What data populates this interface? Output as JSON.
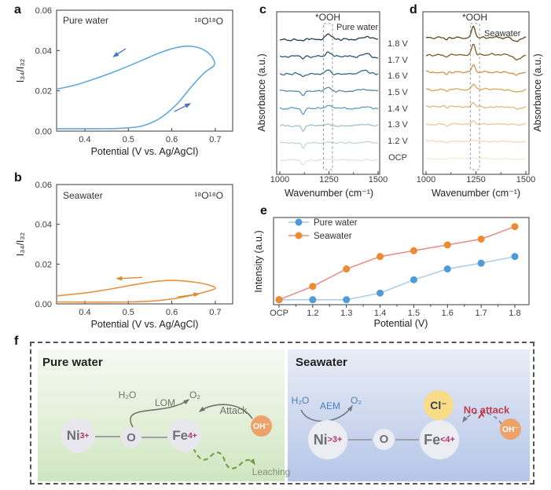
{
  "figure": {
    "panel_labels": {
      "a": "a",
      "b": "b",
      "c": "c",
      "d": "d",
      "e": "e",
      "f": "f"
    },
    "background": "#ffffff"
  },
  "voltage_labels": [
    "1.8 V",
    "1.7 V",
    "1.6 V",
    "1.5 V",
    "1.4 V",
    "1.3 V",
    "1.2 V",
    "OCP"
  ],
  "chart_data": [
    {
      "id": "a",
      "type": "line",
      "sample": "Pure water",
      "isotope": "¹⁸O¹⁸O",
      "xlabel": "Potential (V vs. Ag/AgCl)",
      "ylabel": "I₃₄/I₃₂",
      "xlim": [
        0.335,
        0.74
      ],
      "ylim": [
        0,
        0.06
      ],
      "xticks": [
        "0.4",
        "0.5",
        "0.6",
        "0.7"
      ],
      "yticks": [
        "0.00",
        "0.02",
        "0.04",
        "0.06"
      ],
      "color": "#63a8d8",
      "arrow_color": "#4575c4",
      "loop": [
        [
          0.335,
          0.0012
        ],
        [
          0.42,
          0.0012
        ],
        [
          0.48,
          0.0014
        ],
        [
          0.53,
          0.0025
        ],
        [
          0.57,
          0.006
        ],
        [
          0.61,
          0.013
        ],
        [
          0.645,
          0.022
        ],
        [
          0.675,
          0.029
        ],
        [
          0.698,
          0.033
        ],
        [
          0.688,
          0.038
        ],
        [
          0.66,
          0.0415
        ],
        [
          0.625,
          0.042
        ],
        [
          0.58,
          0.0395
        ],
        [
          0.53,
          0.035
        ],
        [
          0.48,
          0.0305
        ],
        [
          0.43,
          0.0265
        ],
        [
          0.38,
          0.023
        ],
        [
          0.335,
          0.0208
        ]
      ],
      "arrows": [
        {
          "from": [
            0.494,
            0.0409
          ],
          "to": [
            0.466,
            0.037
          ]
        },
        {
          "from": [
            0.606,
            0.0097
          ],
          "to": [
            0.642,
            0.0136
          ]
        }
      ]
    },
    {
      "id": "b",
      "type": "line",
      "sample": "Seawater",
      "isotope": "¹⁸O¹⁸O",
      "xlabel": "Potential (V vs. Ag/AgCl)",
      "ylabel": "I₃₄/I₃₂",
      "xlim": [
        0.335,
        0.74
      ],
      "ylim": [
        0,
        0.06
      ],
      "xticks": [
        "0.4",
        "0.5",
        "0.6",
        "0.7"
      ],
      "yticks": [
        "0.00",
        "0.02",
        "0.04",
        "0.06"
      ],
      "color": "#e59141",
      "arrow_color": "#de8a35",
      "loop": [
        [
          0.335,
          0.001
        ],
        [
          0.42,
          0.0009
        ],
        [
          0.5,
          0.001
        ],
        [
          0.56,
          0.0015
        ],
        [
          0.61,
          0.0028
        ],
        [
          0.655,
          0.0048
        ],
        [
          0.685,
          0.0065
        ],
        [
          0.7,
          0.0078
        ],
        [
          0.69,
          0.0092
        ],
        [
          0.665,
          0.0105
        ],
        [
          0.63,
          0.0115
        ],
        [
          0.6,
          0.0118
        ],
        [
          0.56,
          0.0112
        ],
        [
          0.51,
          0.0095
        ],
        [
          0.46,
          0.0075
        ],
        [
          0.4,
          0.0055
        ],
        [
          0.335,
          0.004
        ]
      ],
      "arrows": [
        {
          "from": [
            0.532,
            0.0133
          ],
          "to": [
            0.474,
            0.0127
          ]
        },
        {
          "from": [
            0.613,
            0.0035
          ],
          "to": [
            0.662,
            0.005
          ]
        }
      ]
    },
    {
      "id": "c",
      "type": "spectra",
      "sample": "Pure water",
      "annotation": "*OOH",
      "xlabel": "Wavenumber (cm⁻¹)",
      "ylabel": "Absorbance (a.u.)",
      "xlim": [
        1000,
        1500
      ],
      "xticks": [
        "1000",
        "1250",
        "1500"
      ],
      "highlight_band": [
        1222,
        1268
      ],
      "peak_center": 1247,
      "curves": [
        {
          "label": "1.8 V",
          "color": "#223c4d",
          "peak": 6.5,
          "dip": 3,
          "bump": 4,
          "noise": 2.6
        },
        {
          "label": "1.7 V",
          "color": "#2a5572",
          "peak": 6.0,
          "dip": 3,
          "bump": 4,
          "noise": 2.6
        },
        {
          "label": "1.6 V",
          "color": "#336a8c",
          "peak": 5.5,
          "dip": 4,
          "bump": 3.5,
          "noise": 2.4
        },
        {
          "label": "1.5 V",
          "color": "#5588ab",
          "peak": 4.5,
          "dip": 6,
          "bump": 3,
          "noise": 2.2
        },
        {
          "label": "1.4 V",
          "color": "#5f9dc4",
          "peak": 3.5,
          "dip": 8,
          "bump": 2,
          "noise": 2.2
        },
        {
          "label": "1.3 V",
          "color": "#a2bfce",
          "peak": 2.5,
          "dip": 7,
          "bump": 1.5,
          "noise": 1.8
        },
        {
          "label": "1.2 V",
          "color": "#c4d4de",
          "peak": 2.0,
          "dip": 6,
          "bump": 1,
          "noise": 1.6
        },
        {
          "label": "OCP",
          "color": "#dae4ea",
          "peak": 1.5,
          "dip": 6,
          "bump": 1,
          "noise": 1.5
        }
      ]
    },
    {
      "id": "d",
      "type": "spectra",
      "sample": "Seawater",
      "annotation": "*OOH",
      "xlabel": "Wavenumber (cm⁻¹)",
      "ylabel": "Absorbance (a.u.)",
      "xlim": [
        1000,
        1500
      ],
      "xticks": [
        "1000",
        "1250",
        "1500"
      ],
      "highlight_band": [
        1222,
        1268
      ],
      "peak_center": 1237,
      "curves": [
        {
          "label": "1.8 V",
          "color": "#5f4716",
          "peak": 15,
          "dip": 5,
          "dip2": 2,
          "noise": 2.2
        },
        {
          "label": "1.7 V",
          "color": "#7b5a22",
          "peak": 14,
          "dip": 6,
          "dip2": 2,
          "noise": 2.4
        },
        {
          "label": "1.6 V",
          "color": "#cc9443",
          "peak": 10,
          "dip": 3,
          "dip2": 3,
          "noise": 2.4
        },
        {
          "label": "1.5 V",
          "color": "#d9a55b",
          "peak": 7,
          "dip": 2.5,
          "dip2": 3,
          "noise": 2.2
        },
        {
          "label": "1.4 V",
          "color": "#e2b677",
          "peak": 5.5,
          "dip": 2,
          "dip2": 2,
          "noise": 2.0
        },
        {
          "label": "1.3 V",
          "color": "#ecc795",
          "peak": 4,
          "dip": 1.5,
          "dip2": 2,
          "noise": 1.8
        },
        {
          "label": "1.2 V",
          "color": "#f3d8b6",
          "peak": 2.2,
          "dip": 1,
          "dip2": 1.5,
          "noise": 1.6
        },
        {
          "label": "OCP",
          "color": "#f9e9d6",
          "peak": 1.4,
          "dip": 1,
          "dip2": 1.5,
          "noise": 1.4
        }
      ]
    },
    {
      "id": "e",
      "type": "line-scatter",
      "xlabel": "Potential (V)",
      "ylabel": "Intensity (a.u.)",
      "categories": [
        "OCP",
        "1.2",
        "1.3",
        "1.4",
        "1.5",
        "1.6",
        "1.7",
        "1.8"
      ],
      "ylim": [
        0,
        1.05
      ],
      "legend_position": "top-left",
      "series": [
        {
          "name": "Pure water",
          "marker_color": "#4f9bd7",
          "line_color": "#a9cde8",
          "values": [
            0.06,
            0.06,
            0.06,
            0.14,
            0.3,
            0.43,
            0.5,
            0.58
          ]
        },
        {
          "name": "Seawater",
          "marker_color": "#ee8a2f",
          "line_color": "#e58b82",
          "values": [
            0.06,
            0.22,
            0.43,
            0.58,
            0.65,
            0.72,
            0.79,
            0.94
          ]
        }
      ]
    }
  ],
  "diagram": {
    "left": {
      "title": "Pure water",
      "reactant": "H₂O",
      "mechanism": "LOM",
      "product": "O₂",
      "attack": "Attack",
      "leaching": "Leaching",
      "ni": {
        "base": "Ni",
        "sup": "3+"
      },
      "bridge": "O",
      "fe": {
        "base": "Fe",
        "sup": "4+"
      },
      "oh": "OH⁻"
    },
    "right": {
      "title": "Seawater",
      "reactant": "H₂O",
      "mechanism": "AEM",
      "product": "O₂",
      "no_attack": "No attack",
      "cross": "✗",
      "chloride": "Cl⁻",
      "ni": {
        "base": "Ni",
        "sup": ">3+"
      },
      "bridge": "O",
      "fe": {
        "base": "Fe",
        "sup": "<4+"
      },
      "oh": "OH⁻"
    }
  }
}
